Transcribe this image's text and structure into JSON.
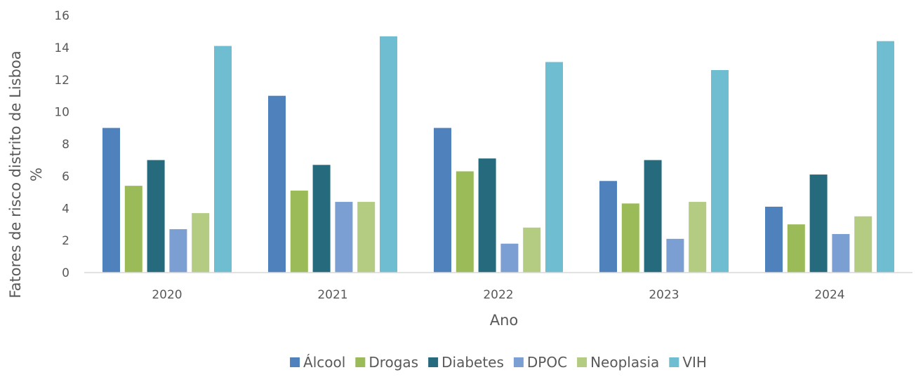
{
  "chart_data": {
    "type": "bar",
    "xlabel": "Ano",
    "ylabel_lines": [
      "Fatores de risco  distrito de Lisboa",
      "%"
    ],
    "ylim": [
      0,
      16
    ],
    "yticks": [
      0,
      2,
      4,
      6,
      8,
      10,
      12,
      14,
      16
    ],
    "grid": false,
    "legend_position": "bottom",
    "categories": [
      "2020",
      "2021",
      "2022",
      "2023",
      "2024"
    ],
    "series": [
      {
        "name": "Álcool",
        "color": "#4f81bd",
        "values": [
          9.0,
          11.0,
          9.0,
          5.7,
          4.1
        ]
      },
      {
        "name": "Drogas",
        "color": "#9bbb59",
        "values": [
          5.4,
          5.1,
          6.3,
          4.3,
          3.0
        ]
      },
      {
        "name": "Diabetes",
        "color": "#266a7d",
        "values": [
          7.0,
          6.7,
          7.1,
          7.0,
          6.1
        ]
      },
      {
        "name": "DPOC",
        "color": "#7b9fd2",
        "values": [
          2.7,
          4.4,
          1.8,
          2.1,
          2.4
        ]
      },
      {
        "name": "Neoplasia",
        "color": "#b3cc82",
        "values": [
          3.7,
          4.4,
          2.8,
          4.4,
          3.5
        ]
      },
      {
        "name": "VIH",
        "color": "#6fbdd1",
        "values": [
          14.1,
          14.7,
          13.1,
          12.6,
          14.4
        ]
      }
    ]
  }
}
